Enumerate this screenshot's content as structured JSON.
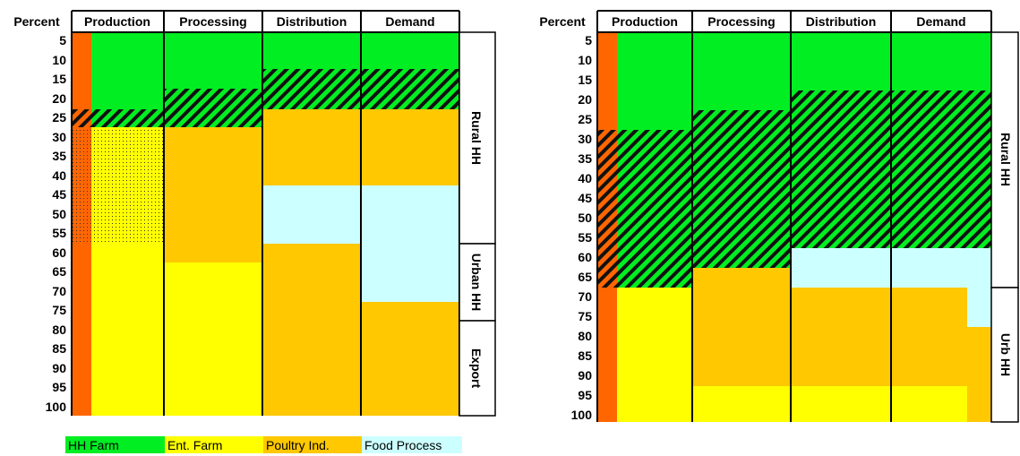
{
  "chart_data": [
    {
      "type": "bar",
      "title": "",
      "ylabel": "Percent",
      "ylim": [
        0,
        100
      ],
      "categories": [
        "Production",
        "Processing",
        "Distribution",
        "Demand"
      ],
      "y_ticks": [
        "5",
        "10",
        "15",
        "20",
        "25",
        "30",
        "35",
        "40",
        "45",
        "50",
        "55",
        "60",
        "65",
        "70",
        "75",
        "80",
        "85",
        "90",
        "95",
        "100"
      ],
      "segments_percent": {
        "Production": [
          {
            "from": 0,
            "to": 19,
            "fill": "HH Farm"
          },
          {
            "from": 19,
            "to": 24,
            "fill": "HH Farm + Ent. Farm"
          },
          {
            "from": 24,
            "to": 54,
            "fill": "Ent. Farm (dotted)"
          },
          {
            "from": 54,
            "to": 100,
            "fill": "Ent. Farm"
          }
        ],
        "Processing": [
          {
            "from": 0,
            "to": 14,
            "fill": "HH Farm"
          },
          {
            "from": 14,
            "to": 24,
            "fill": "HH Farm + Ent. Farm"
          },
          {
            "from": 24,
            "to": 59,
            "fill": "Poultry Ind."
          },
          {
            "from": 59,
            "to": 100,
            "fill": "Ent. Farm"
          }
        ],
        "Distribution": [
          {
            "from": 0,
            "to": 9,
            "fill": "HH Farm"
          },
          {
            "from": 9,
            "to": 19,
            "fill": "HH Farm + Ent. Farm"
          },
          {
            "from": 19,
            "to": 39,
            "fill": "Poultry Ind."
          },
          {
            "from": 39,
            "to": 54,
            "fill": "Food Process"
          },
          {
            "from": 54,
            "to": 100,
            "fill": "Poultry Ind."
          }
        ],
        "Demand": [
          {
            "from": 0,
            "to": 9,
            "fill": "HH Farm"
          },
          {
            "from": 9,
            "to": 19,
            "fill": "HH Farm + Ent. Farm"
          },
          {
            "from": 19,
            "to": 39,
            "fill": "Poultry Ind."
          },
          {
            "from": 39,
            "to": 69,
            "fill": "Food Process"
          },
          {
            "from": 69,
            "to": 100,
            "fill": "Poultry Ind."
          }
        ]
      },
      "left_strip": "orange (hatched 19–24, dotted 24–54)",
      "side_labels": [
        {
          "label": "Rural HH",
          "from": 0,
          "to": 54
        },
        {
          "label": "Urban HH",
          "from": 54,
          "to": 74
        },
        {
          "label": "Export",
          "from": 74,
          "to": 100
        }
      ]
    },
    {
      "type": "bar",
      "title": "",
      "ylabel": "Percent",
      "ylim": [
        0,
        100
      ],
      "categories": [
        "Production",
        "Processing",
        "Distribution",
        "Demand"
      ],
      "y_ticks": [
        "5",
        "10",
        "15",
        "20",
        "25",
        "30",
        "35",
        "40",
        "45",
        "50",
        "55",
        "60",
        "65",
        "70",
        "75",
        "80",
        "85",
        "90",
        "95",
        "100"
      ],
      "segments_percent": {
        "Production": [
          {
            "from": 0,
            "to": 24,
            "fill": "HH Farm"
          },
          {
            "from": 24,
            "to": 64,
            "fill": "HH Farm + Ent. Farm"
          },
          {
            "from": 64,
            "to": 100,
            "fill": "Ent. Farm"
          }
        ],
        "Processing": [
          {
            "from": 0,
            "to": 19,
            "fill": "HH Farm"
          },
          {
            "from": 19,
            "to": 59,
            "fill": "HH Farm + Ent. Farm"
          },
          {
            "from": 59,
            "to": 89,
            "fill": "Poultry Ind."
          },
          {
            "from": 89,
            "to": 100,
            "fill": "Ent. Farm"
          }
        ],
        "Distribution": [
          {
            "from": 0,
            "to": 14,
            "fill": "HH Farm"
          },
          {
            "from": 14,
            "to": 54,
            "fill": "HH Farm + Ent. Farm"
          },
          {
            "from": 54,
            "to": 64,
            "fill": "Food Process"
          },
          {
            "from": 64,
            "to": 89,
            "fill": "Poultry Ind."
          },
          {
            "from": 89,
            "to": 100,
            "fill": "Ent. Farm"
          }
        ],
        "Demand": [
          {
            "from": 0,
            "to": 14,
            "fill": "HH Farm"
          },
          {
            "from": 14,
            "to": 54,
            "fill": "HH Farm + Ent. Farm"
          },
          {
            "from": 54,
            "to": 64,
            "fill": "Food Process"
          },
          {
            "from": 64,
            "to": 89,
            "fill": "Poultry Ind."
          },
          {
            "from": 89,
            "to": 100,
            "fill": "Ent. Farm"
          }
        ]
      },
      "left_strip": "orange (hatched 24–64)",
      "side_labels": [
        {
          "label": "Rural HH",
          "from": 0,
          "to": 64
        },
        {
          "label": "Urb HH",
          "from": 64,
          "to": 100
        }
      ]
    }
  ],
  "legend": [
    {
      "label": "HH Farm",
      "color": "#00ee22"
    },
    {
      "label": "Ent. Farm",
      "color": "#ffff00"
    },
    {
      "label": "Poultry Ind.",
      "color": "#ffc800"
    },
    {
      "label": "Food Process",
      "color": "#ccffff"
    }
  ],
  "colors": {
    "hh_farm": "#00ee22",
    "ent_farm": "#ffff00",
    "poultry_ind": "#ffc800",
    "food_process": "#ccffff",
    "strip": "#ff6600",
    "hatch": "#111111"
  }
}
